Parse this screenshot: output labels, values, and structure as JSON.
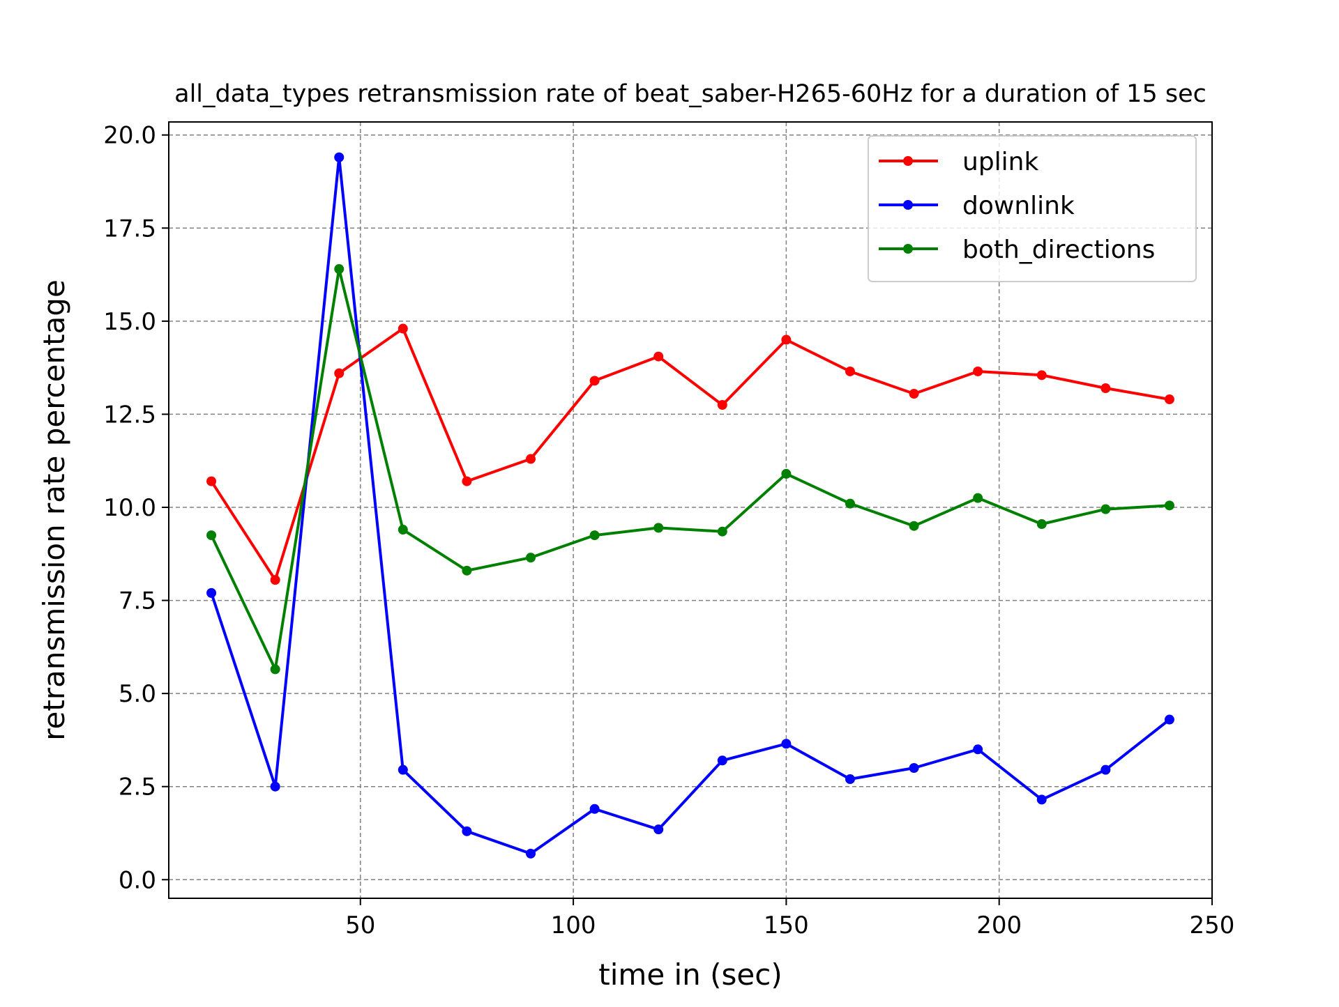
{
  "chart_data": {
    "type": "line",
    "title": "all_data_types retransmission rate of beat_saber-H265-60Hz for a duration of 15 sec",
    "xlabel": "time in (sec)",
    "ylabel": "retransmission rate percentage",
    "xlim": [
      5,
      250
    ],
    "ylim": [
      -0.5,
      20.35
    ],
    "xticks": [
      50,
      100,
      150,
      200,
      250
    ],
    "xtick_labels": [
      "50",
      "100",
      "150",
      "200",
      "250"
    ],
    "yticks": [
      0,
      2.5,
      5,
      7.5,
      10,
      12.5,
      15,
      17.5,
      20
    ],
    "ytick_labels": [
      "0.0",
      "2.5",
      "5.0",
      "7.5",
      "10.0",
      "12.5",
      "15.0",
      "17.5",
      "20.0"
    ],
    "grid": true,
    "legend_position": "top-right",
    "x": [
      15,
      30,
      45,
      60,
      75,
      90,
      105,
      120,
      135,
      150,
      165,
      180,
      195,
      210,
      225,
      240
    ],
    "series": [
      {
        "name": "uplink",
        "color": "#ff0000",
        "values": [
          10.7,
          8.05,
          13.6,
          14.8,
          10.7,
          11.3,
          13.4,
          14.05,
          12.75,
          14.5,
          13.65,
          13.05,
          13.65,
          13.55,
          13.2,
          12.9
        ]
      },
      {
        "name": "downlink",
        "color": "#0000ff",
        "values": [
          7.7,
          2.5,
          19.4,
          2.95,
          1.3,
          0.7,
          1.9,
          1.35,
          3.2,
          3.65,
          2.7,
          3.0,
          3.5,
          2.15,
          2.95,
          4.3
        ]
      },
      {
        "name": "both_directions",
        "color": "#008000",
        "values": [
          9.25,
          5.65,
          16.4,
          9.4,
          8.3,
          8.65,
          9.25,
          9.45,
          9.35,
          10.9,
          10.1,
          9.5,
          10.25,
          9.55,
          9.95,
          10.05
        ]
      }
    ]
  }
}
